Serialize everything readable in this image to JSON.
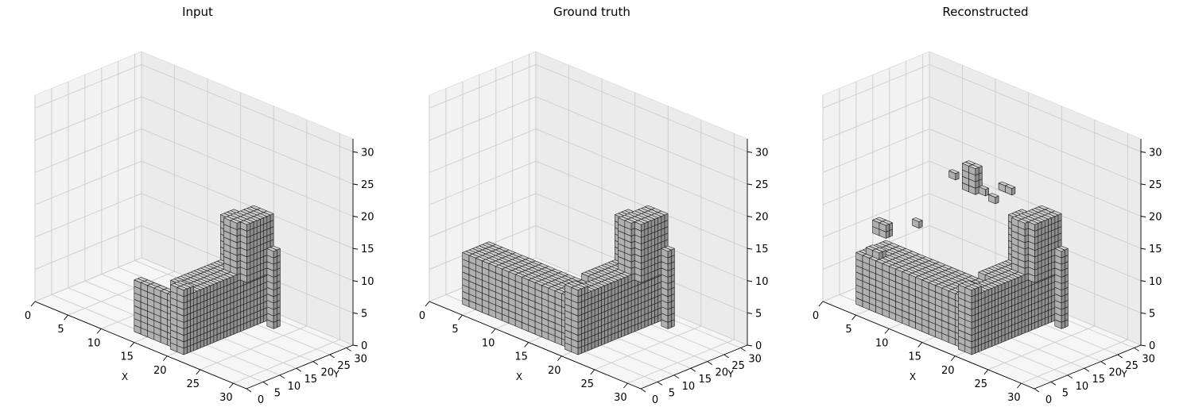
{
  "colors": {
    "voxel_top": "#d0d0d0",
    "voxel_front": "#b0b0b0",
    "voxel_side": "#8e8e8e",
    "voxel_edge": "#1a1a1a",
    "pane_left": "#f2f2f2",
    "pane_back": "#ebebeb",
    "pane_floor": "#f6f6f6",
    "grid": "#cccccc"
  },
  "chart_data": [
    {
      "type": "voxel3d",
      "title": "Input",
      "xlabel": "X",
      "ylabel": "Y",
      "zlabel": "",
      "xlim": [
        0,
        32
      ],
      "ylim": [
        0,
        32
      ],
      "zlim": [
        0,
        32
      ],
      "xticks": [
        "0",
        "5",
        "10",
        "15",
        "20",
        "25",
        "30"
      ],
      "yticks": [
        "0",
        "5",
        "10",
        "15",
        "20",
        "25",
        "30"
      ],
      "zticks": [
        "0",
        "5",
        "10",
        "15",
        "20",
        "25",
        "30"
      ],
      "grid": true,
      "boxes": [
        {
          "x": [
            13,
            19
          ],
          "y": [
            4,
            6
          ],
          "z": [
            0,
            8
          ]
        },
        {
          "x": [
            19,
            21
          ],
          "y": [
            3,
            6
          ],
          "z": [
            0,
            10
          ]
        },
        {
          "x": [
            19,
            21
          ],
          "y": [
            6,
            28
          ],
          "z": [
            0,
            9
          ]
        },
        {
          "x": [
            19,
            21
          ],
          "y": [
            19,
            28
          ],
          "z": [
            9,
            17
          ]
        },
        {
          "x": [
            21,
            22
          ],
          "y": [
            20,
            28
          ],
          "z": [
            8,
            17
          ]
        },
        {
          "x": [
            22,
            23
          ],
          "y": [
            26,
            28
          ],
          "z": [
            0,
            12
          ]
        },
        {
          "x": [
            17,
            19
          ],
          "y": [
            7,
            26
          ],
          "z": [
            0,
            9
          ]
        },
        {
          "x": [
            17,
            19
          ],
          "y": [
            22,
            26
          ],
          "z": [
            9,
            16
          ]
        }
      ]
    },
    {
      "type": "voxel3d",
      "title": "Ground truth",
      "xlabel": "X",
      "ylabel": "Y",
      "zlabel": "",
      "xlim": [
        0,
        32
      ],
      "ylim": [
        0,
        32
      ],
      "zlim": [
        0,
        32
      ],
      "xticks": [
        "0",
        "5",
        "10",
        "15",
        "20",
        "25",
        "30"
      ],
      "yticks": [
        "0",
        "5",
        "10",
        "15",
        "20",
        "25",
        "30"
      ],
      "zticks": [
        "0",
        "5",
        "10",
        "15",
        "20",
        "25",
        "30"
      ],
      "grid": true,
      "boxes": [
        {
          "x": [
            3,
            19
          ],
          "y": [
            4,
            12
          ],
          "z": [
            0,
            8
          ]
        },
        {
          "x": [
            19,
            21
          ],
          "y": [
            3,
            6
          ],
          "z": [
            0,
            10
          ]
        },
        {
          "x": [
            19,
            21
          ],
          "y": [
            6,
            28
          ],
          "z": [
            0,
            9
          ]
        },
        {
          "x": [
            19,
            21
          ],
          "y": [
            19,
            28
          ],
          "z": [
            9,
            17
          ]
        },
        {
          "x": [
            21,
            22
          ],
          "y": [
            20,
            28
          ],
          "z": [
            8,
            17
          ]
        },
        {
          "x": [
            22,
            23
          ],
          "y": [
            26,
            28
          ],
          "z": [
            0,
            12
          ]
        },
        {
          "x": [
            17,
            19
          ],
          "y": [
            12,
            26
          ],
          "z": [
            0,
            9
          ]
        },
        {
          "x": [
            17,
            19
          ],
          "y": [
            22,
            26
          ],
          "z": [
            9,
            16
          ]
        }
      ]
    },
    {
      "type": "voxel3d",
      "title": "Reconstructed",
      "xlabel": "X",
      "ylabel": "Y",
      "zlabel": "",
      "xlim": [
        0,
        32
      ],
      "ylim": [
        0,
        32
      ],
      "zlim": [
        0,
        32
      ],
      "xticks": [
        "0",
        "5",
        "10",
        "15",
        "20",
        "25",
        "30"
      ],
      "yticks": [
        "0",
        "5",
        "10",
        "15",
        "20",
        "25",
        "30"
      ],
      "zticks": [
        "0",
        "5",
        "10",
        "15",
        "20",
        "25",
        "30"
      ],
      "grid": true,
      "boxes": [
        {
          "x": [
            3,
            19
          ],
          "y": [
            4,
            13
          ],
          "z": [
            0,
            8
          ]
        },
        {
          "x": [
            19,
            21
          ],
          "y": [
            3,
            6
          ],
          "z": [
            0,
            10
          ]
        },
        {
          "x": [
            19,
            21
          ],
          "y": [
            6,
            28
          ],
          "z": [
            0,
            9
          ]
        },
        {
          "x": [
            19,
            21
          ],
          "y": [
            19,
            28
          ],
          "z": [
            9,
            17
          ]
        },
        {
          "x": [
            21,
            22
          ],
          "y": [
            20,
            28
          ],
          "z": [
            8,
            17
          ]
        },
        {
          "x": [
            22,
            23
          ],
          "y": [
            26,
            28
          ],
          "z": [
            0,
            12
          ]
        },
        {
          "x": [
            17,
            19
          ],
          "y": [
            13,
            26
          ],
          "z": [
            0,
            9
          ]
        },
        {
          "x": [
            17,
            19
          ],
          "y": [
            22,
            26
          ],
          "z": [
            9,
            16
          ]
        },
        {
          "x": [
            3,
            5
          ],
          "y": [
            9,
            11
          ],
          "z": [
            10,
            12
          ]
        },
        {
          "x": [
            10,
            12
          ],
          "y": [
            22,
            24
          ],
          "z": [
            17,
            21
          ]
        },
        {
          "x": [
            8,
            9
          ],
          "y": [
            22,
            23
          ],
          "z": [
            18,
            19
          ]
        },
        {
          "x": [
            12,
            13
          ],
          "y": [
            23,
            24
          ],
          "z": [
            17,
            18
          ]
        },
        {
          "x": [
            14,
            16
          ],
          "y": [
            25,
            26
          ],
          "z": [
            18,
            19
          ]
        },
        {
          "x": [
            13,
            14
          ],
          "y": [
            24,
            25
          ],
          "z": [
            16,
            17
          ]
        },
        {
          "x": [
            7,
            8
          ],
          "y": [
            13,
            14
          ],
          "z": [
            12,
            13
          ]
        },
        {
          "x": [
            4,
            6
          ],
          "y": [
            5,
            7
          ],
          "z": [
            8,
            9
          ]
        }
      ]
    }
  ]
}
